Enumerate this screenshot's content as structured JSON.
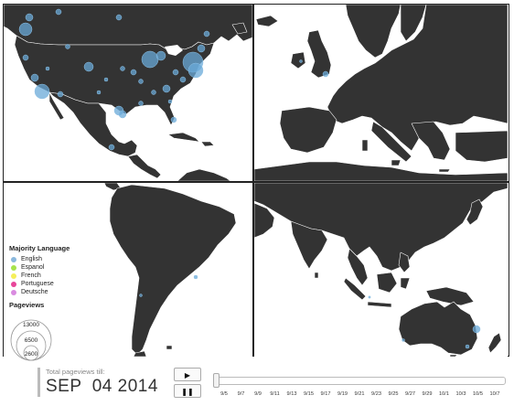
{
  "legend": {
    "language_title": "Majority Language",
    "languages": [
      {
        "label": "English",
        "color": "#8ab8dd"
      },
      {
        "label": "Espanol",
        "color": "#a6e34b"
      },
      {
        "label": "French",
        "color": "#f5ef5a"
      },
      {
        "label": "Portuguese",
        "color": "#e8469a"
      },
      {
        "label": "Deutsche",
        "color": "#d98be0"
      }
    ],
    "pageviews_title": "Pageviews",
    "pageviews_scale": [
      "13000",
      "6500",
      "2600"
    ]
  },
  "controls": {
    "total_label": "Total pageviews till:",
    "date": "SEP  04 2014",
    "play_icon": "play-icon",
    "pause_icon": "pause-icon",
    "ticks": [
      "9/5",
      "9/7",
      "9/9",
      "9/11",
      "9/13",
      "9/15",
      "9/17",
      "9/19",
      "9/21",
      "9/23",
      "9/25",
      "9/27",
      "9/29",
      "10/1",
      "10/3",
      "10/5",
      "10/7"
    ]
  },
  "colors": {
    "land": "#333333",
    "bubble": "#6aa9d8",
    "border": "#ffffff"
  }
}
